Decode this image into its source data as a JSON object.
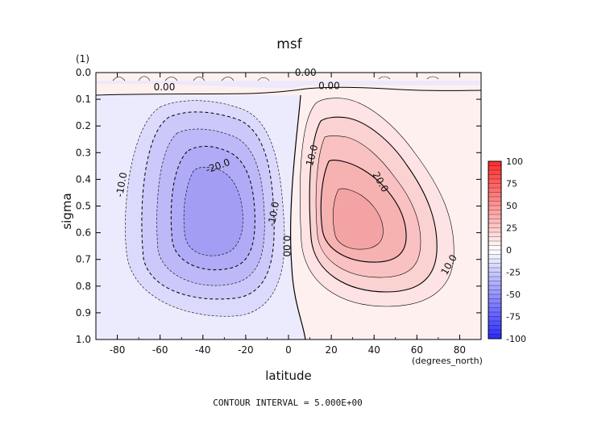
{
  "chart_data": {
    "type": "contour",
    "title": "msf",
    "xlabel": "latitude",
    "ylabel": "sigma",
    "x_units": "(degrees_north)",
    "y_units": "(1)",
    "xlim": [
      -90,
      90
    ],
    "ylim": [
      1.0,
      0.0
    ],
    "x_ticks": [
      "-80",
      "-60",
      "-40",
      "-20",
      "0",
      "20",
      "40",
      "60",
      "80"
    ],
    "x_tick_values": [
      -80,
      -60,
      -40,
      -20,
      0,
      20,
      40,
      60,
      80
    ],
    "y_ticks": [
      "0.0",
      "0.1",
      "0.2",
      "0.3",
      "0.4",
      "0.5",
      "0.6",
      "0.7",
      "0.8",
      "0.9",
      "1.0"
    ],
    "y_tick_values": [
      0.0,
      0.1,
      0.2,
      0.3,
      0.4,
      0.5,
      0.6,
      0.7,
      0.8,
      0.9,
      1.0
    ],
    "contour_interval_text": "CONTOUR INTERVAL = 5.000E+00",
    "contour_labels": [
      {
        "text": "0.00",
        "lat": 8,
        "sigma": 0.0
      },
      {
        "text": "0.00",
        "lat": -58,
        "sigma": 0.055
      },
      {
        "text": "0.00",
        "lat": 19,
        "sigma": 0.05
      },
      {
        "text": "0.00",
        "lat": -1,
        "sigma": 0.65
      },
      {
        "text": "-20.0",
        "lat": -33,
        "sigma": 0.35
      },
      {
        "text": "-10.0",
        "lat": -78,
        "sigma": 0.42
      },
      {
        "text": "-10.0",
        "lat": -7,
        "sigma": 0.53
      },
      {
        "text": "10.0",
        "lat": 11,
        "sigma": 0.31
      },
      {
        "text": "20.0",
        "lat": 43,
        "sigma": 0.41
      },
      {
        "text": "10.0",
        "lat": 75,
        "sigma": 0.72
      }
    ],
    "colorbar": {
      "ticks": [
        "100",
        "75",
        "50",
        "25",
        "0",
        "-25",
        "-50",
        "-75",
        "-100"
      ],
      "range": [
        -100,
        100
      ],
      "negative_color": "#2b2bff",
      "positive_color": "#ff2b2b"
    },
    "cells": {
      "southern_min": {
        "lat": -38,
        "sigma": 0.58,
        "value": -30
      },
      "northern_max": {
        "lat": 30,
        "sigma": 0.56,
        "value": 30
      }
    }
  }
}
